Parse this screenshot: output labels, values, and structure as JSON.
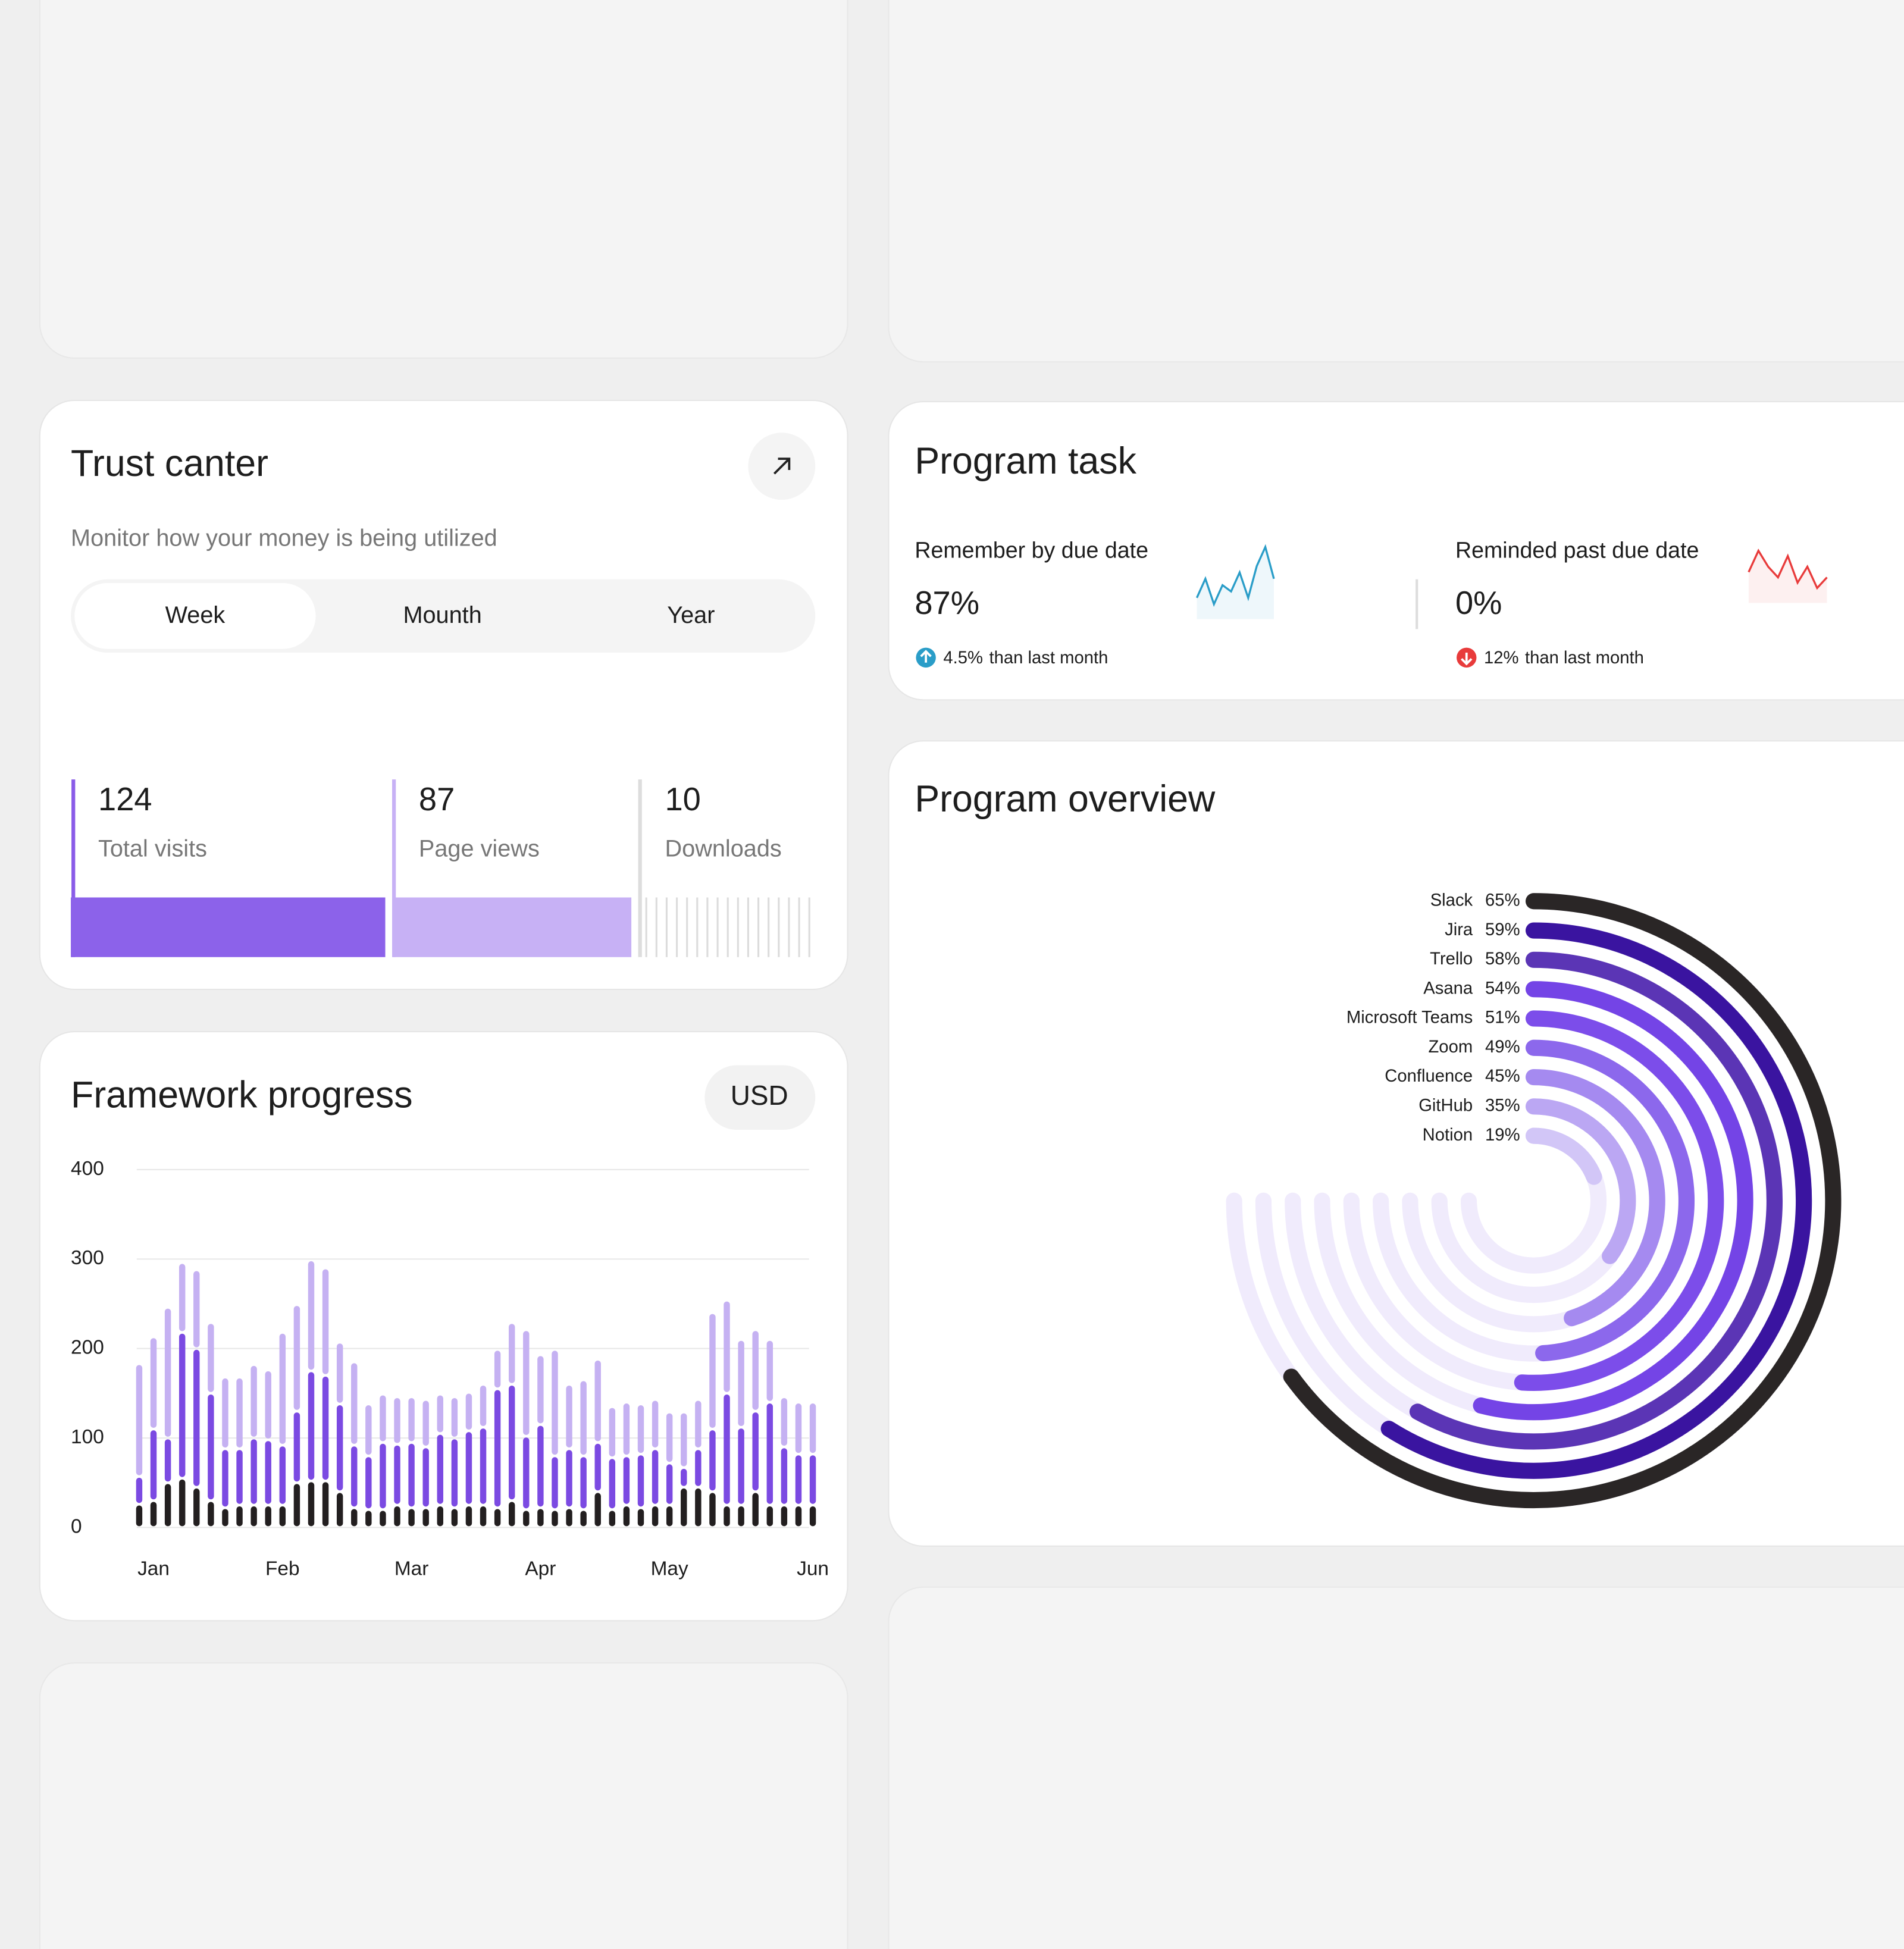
{
  "trust_center": {
    "title": "Trust canter",
    "subtitle": "Monitor how your money is being utilized",
    "tabs": [
      "Week",
      "Mounth",
      "Year"
    ],
    "stats": [
      {
        "value": "124",
        "label": "Total visits"
      },
      {
        "value": "87",
        "label": "Page views"
      },
      {
        "value": "10",
        "label": "Downloads"
      }
    ]
  },
  "program_task": {
    "title": "Program task",
    "metrics": [
      {
        "label": "Remember by due date",
        "value": "87%",
        "change": "4.5%",
        "change_note": "than last month",
        "direction": "up",
        "color": "#2a9dc8",
        "trend": [
          3,
          6,
          2,
          5,
          4,
          7,
          3,
          8,
          11,
          6
        ]
      },
      {
        "label": "Reminded past due date",
        "value": "0%",
        "change": "12%",
        "change_note": "than last month",
        "direction": "down",
        "color": "#e83b3b",
        "trend": [
          5,
          9,
          6,
          4,
          8,
          3,
          6,
          2,
          4
        ]
      }
    ]
  },
  "chart_data": [
    {
      "type": "bar",
      "stacked": true,
      "title": "Framework progress",
      "currency_button": "USD",
      "categories": [
        null,
        "Jan",
        null,
        null,
        null,
        null,
        null,
        null,
        null,
        null,
        "Feb",
        null,
        null,
        null,
        null,
        null,
        null,
        null,
        null,
        "Mar",
        null,
        null,
        null,
        null,
        null,
        null,
        null,
        null,
        "Apr",
        null,
        null,
        null,
        null,
        null,
        null,
        null,
        null,
        "May",
        null,
        null,
        null,
        null,
        null,
        null,
        null,
        null,
        null,
        "Jun"
      ],
      "series": [
        {
          "color": "#231f20",
          "values": [
            26,
            30,
            50,
            55,
            45,
            30,
            22,
            25,
            25,
            25,
            25,
            50,
            52,
            52,
            40,
            22,
            20,
            20,
            25,
            22,
            22,
            25,
            22,
            25,
            25,
            22,
            30,
            20,
            22,
            20,
            22,
            20,
            40,
            20,
            25,
            22,
            25,
            25,
            45,
            45,
            40,
            25,
            25,
            40,
            25,
            25,
            25,
            25
          ]
        },
        {
          "color": "#7b4ae2",
          "values": [
            31,
            80,
            50,
            163,
            155,
            120,
            66,
            63,
            75,
            73,
            67,
            80,
            123,
            118,
            98,
            70,
            60,
            75,
            68,
            73,
            68,
            80,
            78,
            83,
            87,
            133,
            130,
            82,
            93,
            60,
            66,
            60,
            55,
            58,
            55,
            60,
            63,
            47,
            22,
            43,
            70,
            125,
            87,
            90,
            115,
            65,
            57,
            57
          ]
        },
        {
          "color": "#c5b1f2",
          "values": [
            126,
            103,
            146,
            78,
            88,
            79,
            80,
            80,
            82,
            78,
            126,
            119,
            124,
            120,
            69,
            93,
            58,
            54,
            53,
            51,
            53,
            44,
            46,
            43,
            48,
            44,
            69,
            119,
            78,
            119,
            72,
            85,
            93,
            57,
            60,
            56,
            55,
            57,
            62,
            55,
            130,
            104,
            98,
            91,
            70,
            56,
            58,
            58
          ]
        }
      ],
      "ylim": [
        0,
        400
      ],
      "yticks": [
        0,
        100,
        200,
        300,
        400
      ],
      "grid": true
    },
    {
      "type": "radial_bar",
      "title": "Program overview",
      "categories": [
        "Slack",
        "Jira",
        "Trello",
        "Asana",
        "Microsoft Teams",
        "Zoom",
        "Confluence",
        "GitHub",
        "Notion"
      ],
      "values": [
        65,
        59,
        58,
        54,
        51,
        49,
        45,
        35,
        19
      ],
      "value_labels": [
        "65%",
        "59%",
        "58%",
        "54%",
        "51%",
        "49%",
        "45%",
        "35%",
        "19%"
      ],
      "colors": [
        "#2a2626",
        "#3a14a0",
        "#5b35b5",
        "#7444e6",
        "#7c4dea",
        "#8c68ec",
        "#a58af0",
        "#bba7f3",
        "#d2c6f7"
      ],
      "track_color": "#f0ebfc",
      "ylim": [
        0,
        100
      ]
    }
  ]
}
